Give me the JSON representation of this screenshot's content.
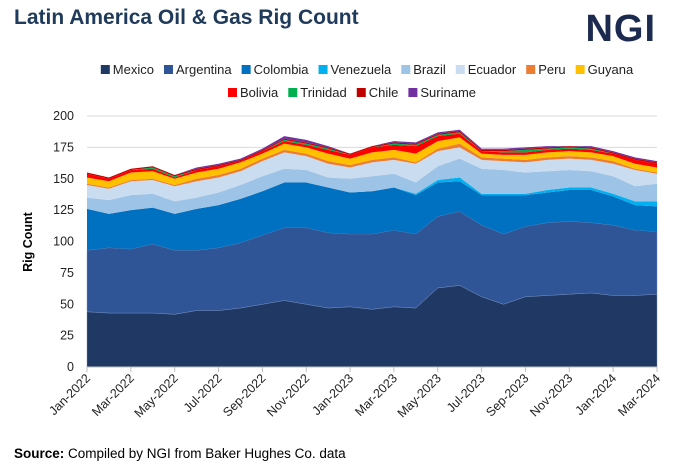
{
  "header": {
    "title": "Latin America Oil & Gas Rig Count",
    "logo": "NGI"
  },
  "source": {
    "label": "Source:",
    "text": " Compiled by NGI from Baker Hughes Co. data"
  },
  "chart_data": {
    "type": "area",
    "stacked": true,
    "title": "Latin America Oil & Gas Rig Count",
    "ylabel": "Rig Count",
    "xlabel": "",
    "ylim": [
      0,
      200
    ],
    "yticks": [
      0,
      25,
      50,
      75,
      100,
      125,
      150,
      175,
      200
    ],
    "grid": true,
    "legend": "top",
    "x": [
      "Jan-2022",
      "Feb-2022",
      "Mar-2022",
      "Apr-2022",
      "May-2022",
      "Jun-2022",
      "Jul-2022",
      "Aug-2022",
      "Sep-2022",
      "Oct-2022",
      "Nov-2022",
      "Dec-2022",
      "Jan-2023",
      "Feb-2023",
      "Mar-2023",
      "Apr-2023",
      "May-2023",
      "Jun-2023",
      "Jul-2023",
      "Aug-2023",
      "Sep-2023",
      "Oct-2023",
      "Nov-2023",
      "Dec-2023",
      "Jan-2024",
      "Feb-2024",
      "Mar-2024"
    ],
    "xtick_labels": [
      "Jan-2022",
      "Mar-2022",
      "May-2022",
      "Jul-2022",
      "Sep-2022",
      "Nov-2022",
      "Jan-2023",
      "Mar-2023",
      "May-2023",
      "Jul-2023",
      "Sep-2023",
      "Nov-2023",
      "Jan-2024",
      "Mar-2024"
    ],
    "series": [
      {
        "name": "Mexico",
        "color": "#1f3864",
        "values": [
          44,
          43,
          43,
          43,
          42,
          45,
          45,
          47,
          50,
          53,
          50,
          47,
          48,
          46,
          48,
          47,
          63,
          65,
          56,
          50,
          56,
          57,
          58,
          59,
          57,
          57,
          58
        ]
      },
      {
        "name": "Argentina",
        "color": "#2f5597",
        "values": [
          49,
          52,
          51,
          55,
          51,
          48,
          50,
          52,
          55,
          58,
          61,
          60,
          58,
          60,
          61,
          59,
          57,
          59,
          57,
          56,
          56,
          58,
          58,
          56,
          56,
          52,
          50
        ]
      },
      {
        "name": "Colombia",
        "color": "#0070c0",
        "values": [
          33,
          27,
          31,
          29,
          29,
          33,
          34,
          35,
          35,
          36,
          36,
          36,
          33,
          34,
          34,
          31,
          27,
          24,
          24,
          31,
          25,
          24,
          25,
          26,
          23,
          20,
          20
        ]
      },
      {
        "name": "Venezuela",
        "color": "#00b0f0",
        "values": [
          0,
          0,
          0,
          0,
          0,
          0,
          0,
          0,
          0,
          0,
          0,
          0,
          0,
          0,
          0,
          1,
          2,
          3,
          1,
          1,
          1,
          2,
          2,
          2,
          2,
          3,
          4
        ]
      },
      {
        "name": "Brazil",
        "color": "#9dc3e6",
        "values": [
          9,
          11,
          12,
          11,
          10,
          9,
          10,
          11,
          12,
          11,
          10,
          8,
          11,
          12,
          11,
          9,
          11,
          15,
          20,
          19,
          17,
          15,
          14,
          13,
          14,
          12,
          14
        ]
      },
      {
        "name": "Ecuador",
        "color": "#c9dcf0",
        "values": [
          10,
          9,
          11,
          11,
          12,
          13,
          12,
          11,
          12,
          13,
          11,
          11,
          9,
          11,
          11,
          15,
          12,
          9,
          7,
          7,
          8,
          9,
          9,
          9,
          10,
          13,
          8
        ]
      },
      {
        "name": "Peru",
        "color": "#ed7d31",
        "values": [
          1,
          1,
          1,
          1,
          1,
          2,
          2,
          2,
          2,
          2,
          2,
          2,
          2,
          2,
          2,
          1,
          2,
          3,
          2,
          2,
          2,
          2,
          2,
          2,
          2,
          1,
          1
        ]
      },
      {
        "name": "Guyana",
        "color": "#ffc000",
        "values": [
          5,
          5,
          6,
          6,
          5,
          5,
          5,
          5,
          4,
          5,
          5,
          6,
          5,
          6,
          6,
          7,
          6,
          5,
          3,
          3,
          4,
          4,
          4,
          4,
          4,
          4,
          4
        ]
      },
      {
        "name": "Bolivia",
        "color": "#ff0000",
        "values": [
          3,
          2,
          2,
          2,
          1,
          2,
          2,
          1,
          2,
          2,
          2,
          3,
          3,
          4,
          4,
          6,
          4,
          3,
          2,
          2,
          2,
          2,
          2,
          2,
          2,
          3,
          3
        ]
      },
      {
        "name": "Trinidad",
        "color": "#00b050",
        "values": [
          0,
          0,
          0,
          1,
          1,
          0,
          0,
          0,
          0,
          1,
          1,
          1,
          0,
          0,
          1,
          1,
          1,
          1,
          0,
          1,
          2,
          1,
          1,
          1,
          0,
          0,
          0
        ]
      },
      {
        "name": "Chile",
        "color": "#c00000",
        "values": [
          1,
          1,
          1,
          1,
          1,
          1,
          1,
          1,
          1,
          1,
          1,
          1,
          1,
          1,
          1,
          1,
          1,
          1,
          1,
          1,
          1,
          1,
          1,
          1,
          1,
          1,
          1
        ]
      },
      {
        "name": "Suriname",
        "color": "#7030a0",
        "values": [
          0,
          0,
          0,
          0,
          0,
          1,
          1,
          1,
          1,
          2,
          2,
          1,
          0,
          0,
          1,
          1,
          1,
          1,
          1,
          1,
          1,
          1,
          0,
          1,
          1,
          1,
          1
        ]
      }
    ]
  }
}
